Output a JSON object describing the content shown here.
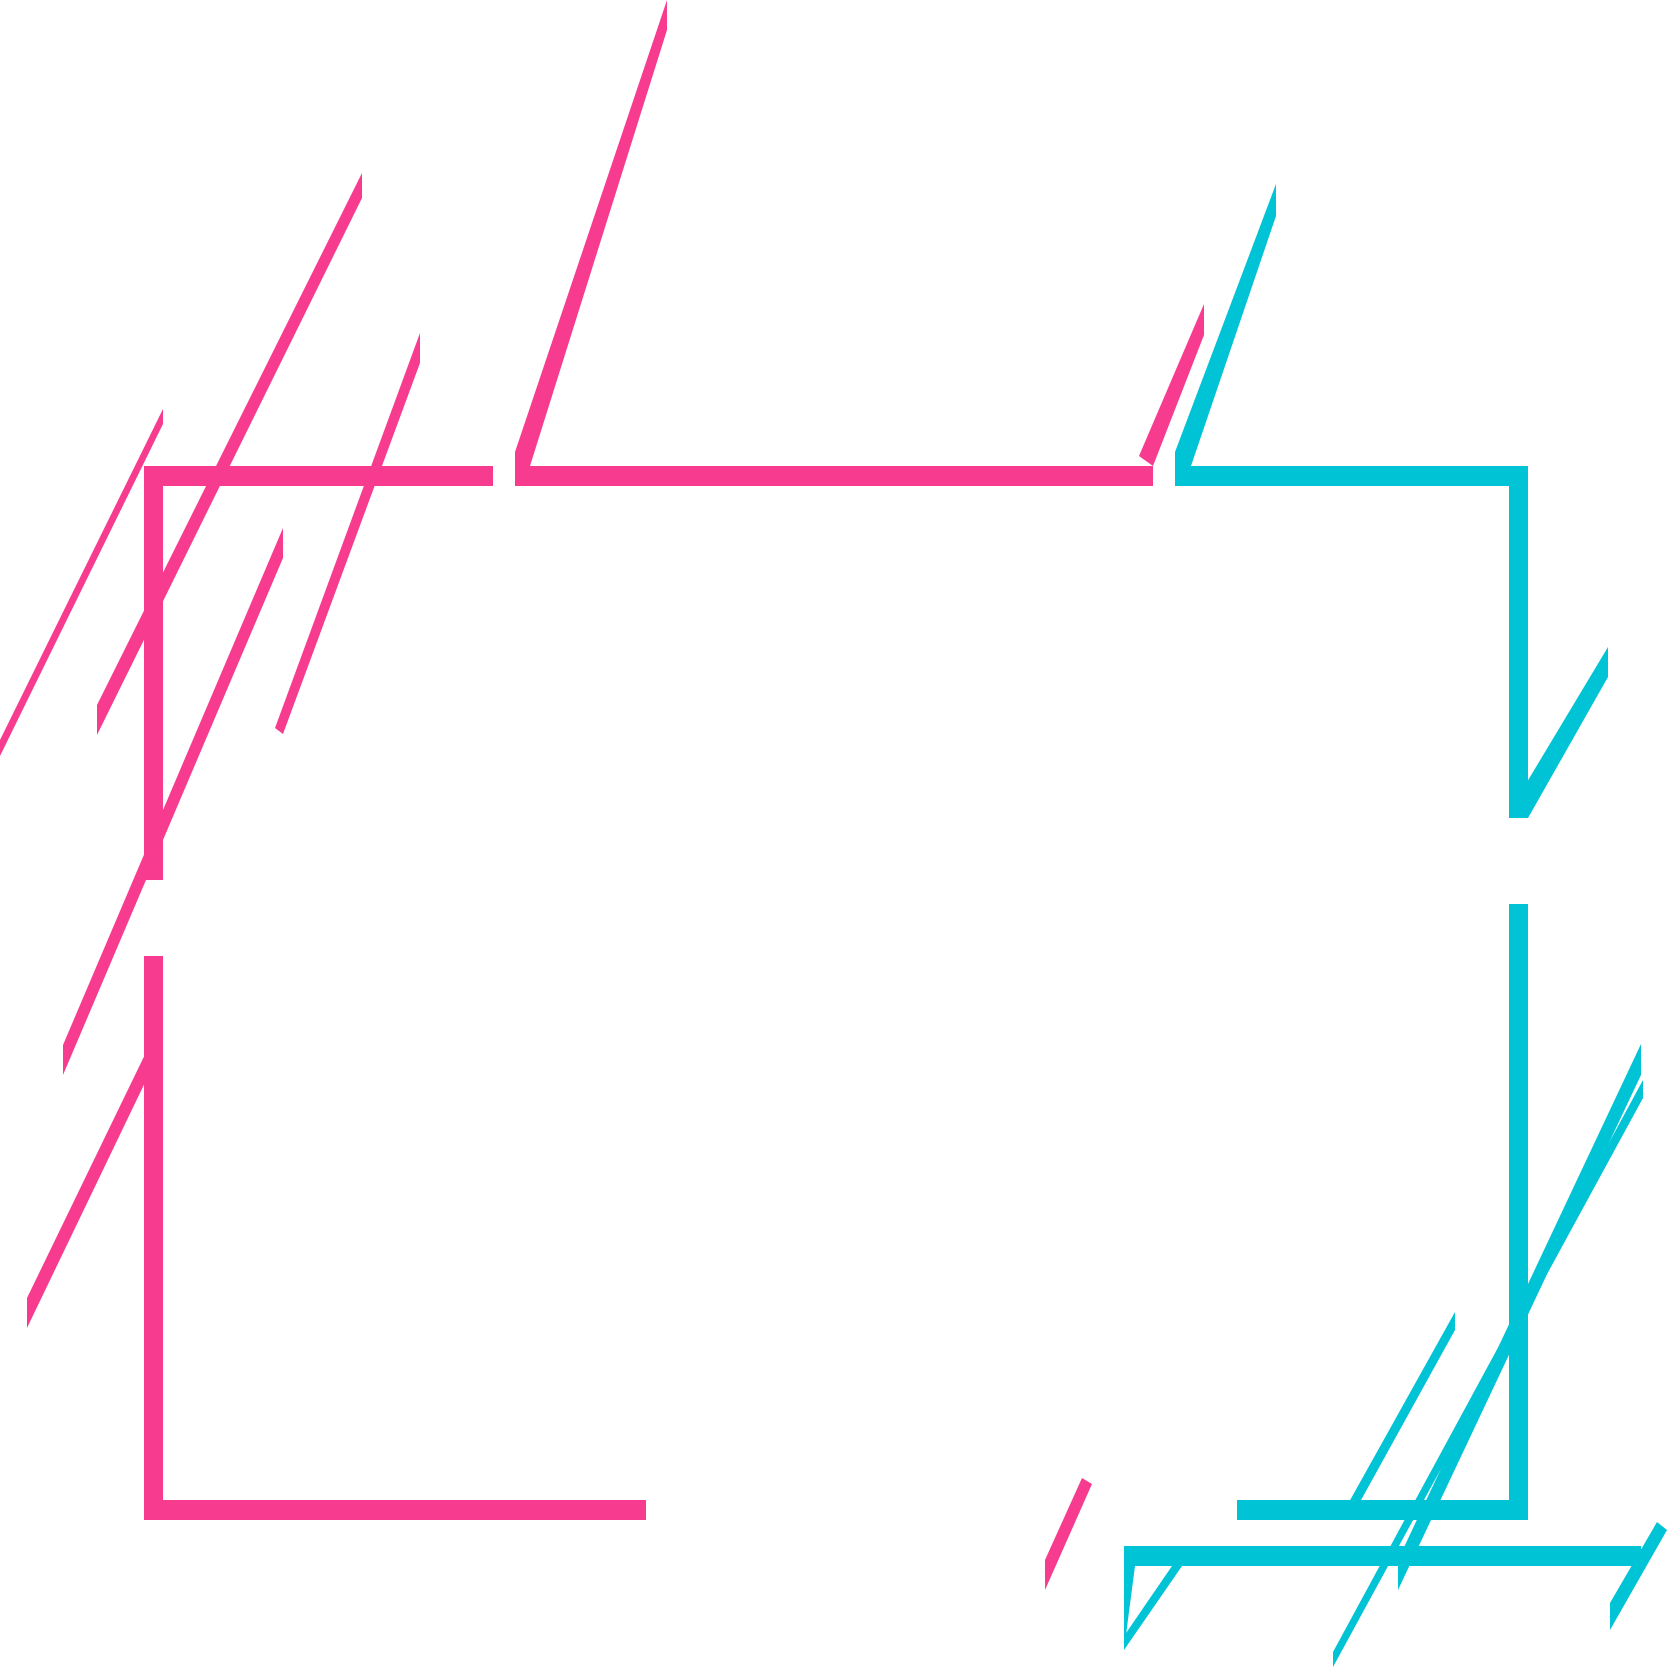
{
  "graphic": {
    "type": "decorative-frame",
    "colors": {
      "pink": "#f73b8f",
      "cyan": "#00c3d5",
      "background": "#ffffff"
    }
  }
}
